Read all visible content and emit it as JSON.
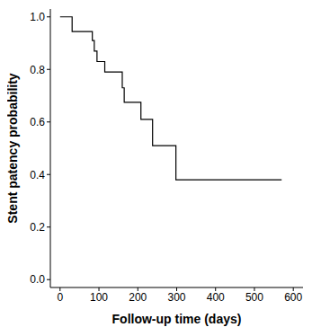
{
  "chart_data": {
    "type": "line",
    "x_label": "Follow-up time (days)",
    "y_label": "Stent patency probability",
    "x": [
      0,
      31,
      83,
      88,
      95,
      115,
      160,
      165,
      208,
      238,
      298,
      570
    ],
    "series": [
      {
        "name": "Stent patency",
        "color": "#000000",
        "values": [
          1,
          0.944,
          0.91,
          0.87,
          0.83,
          0.79,
          0.73,
          0.675,
          0.61,
          0.51,
          0.38,
          0.38
        ],
        "line_style": "step"
      }
    ],
    "xlim": [
      -25,
      625
    ],
    "xticks": [
      0,
      100,
      200,
      300,
      400,
      500,
      600
    ],
    "ylim": [
      -0.03,
      1.03
    ],
    "yticks": [
      {
        "value": 0,
        "label": "0.0"
      },
      0.2,
      0.4,
      0.6,
      0.8,
      {
        "value": 1,
        "label": "1.0"
      }
    ],
    "grid": false
  }
}
